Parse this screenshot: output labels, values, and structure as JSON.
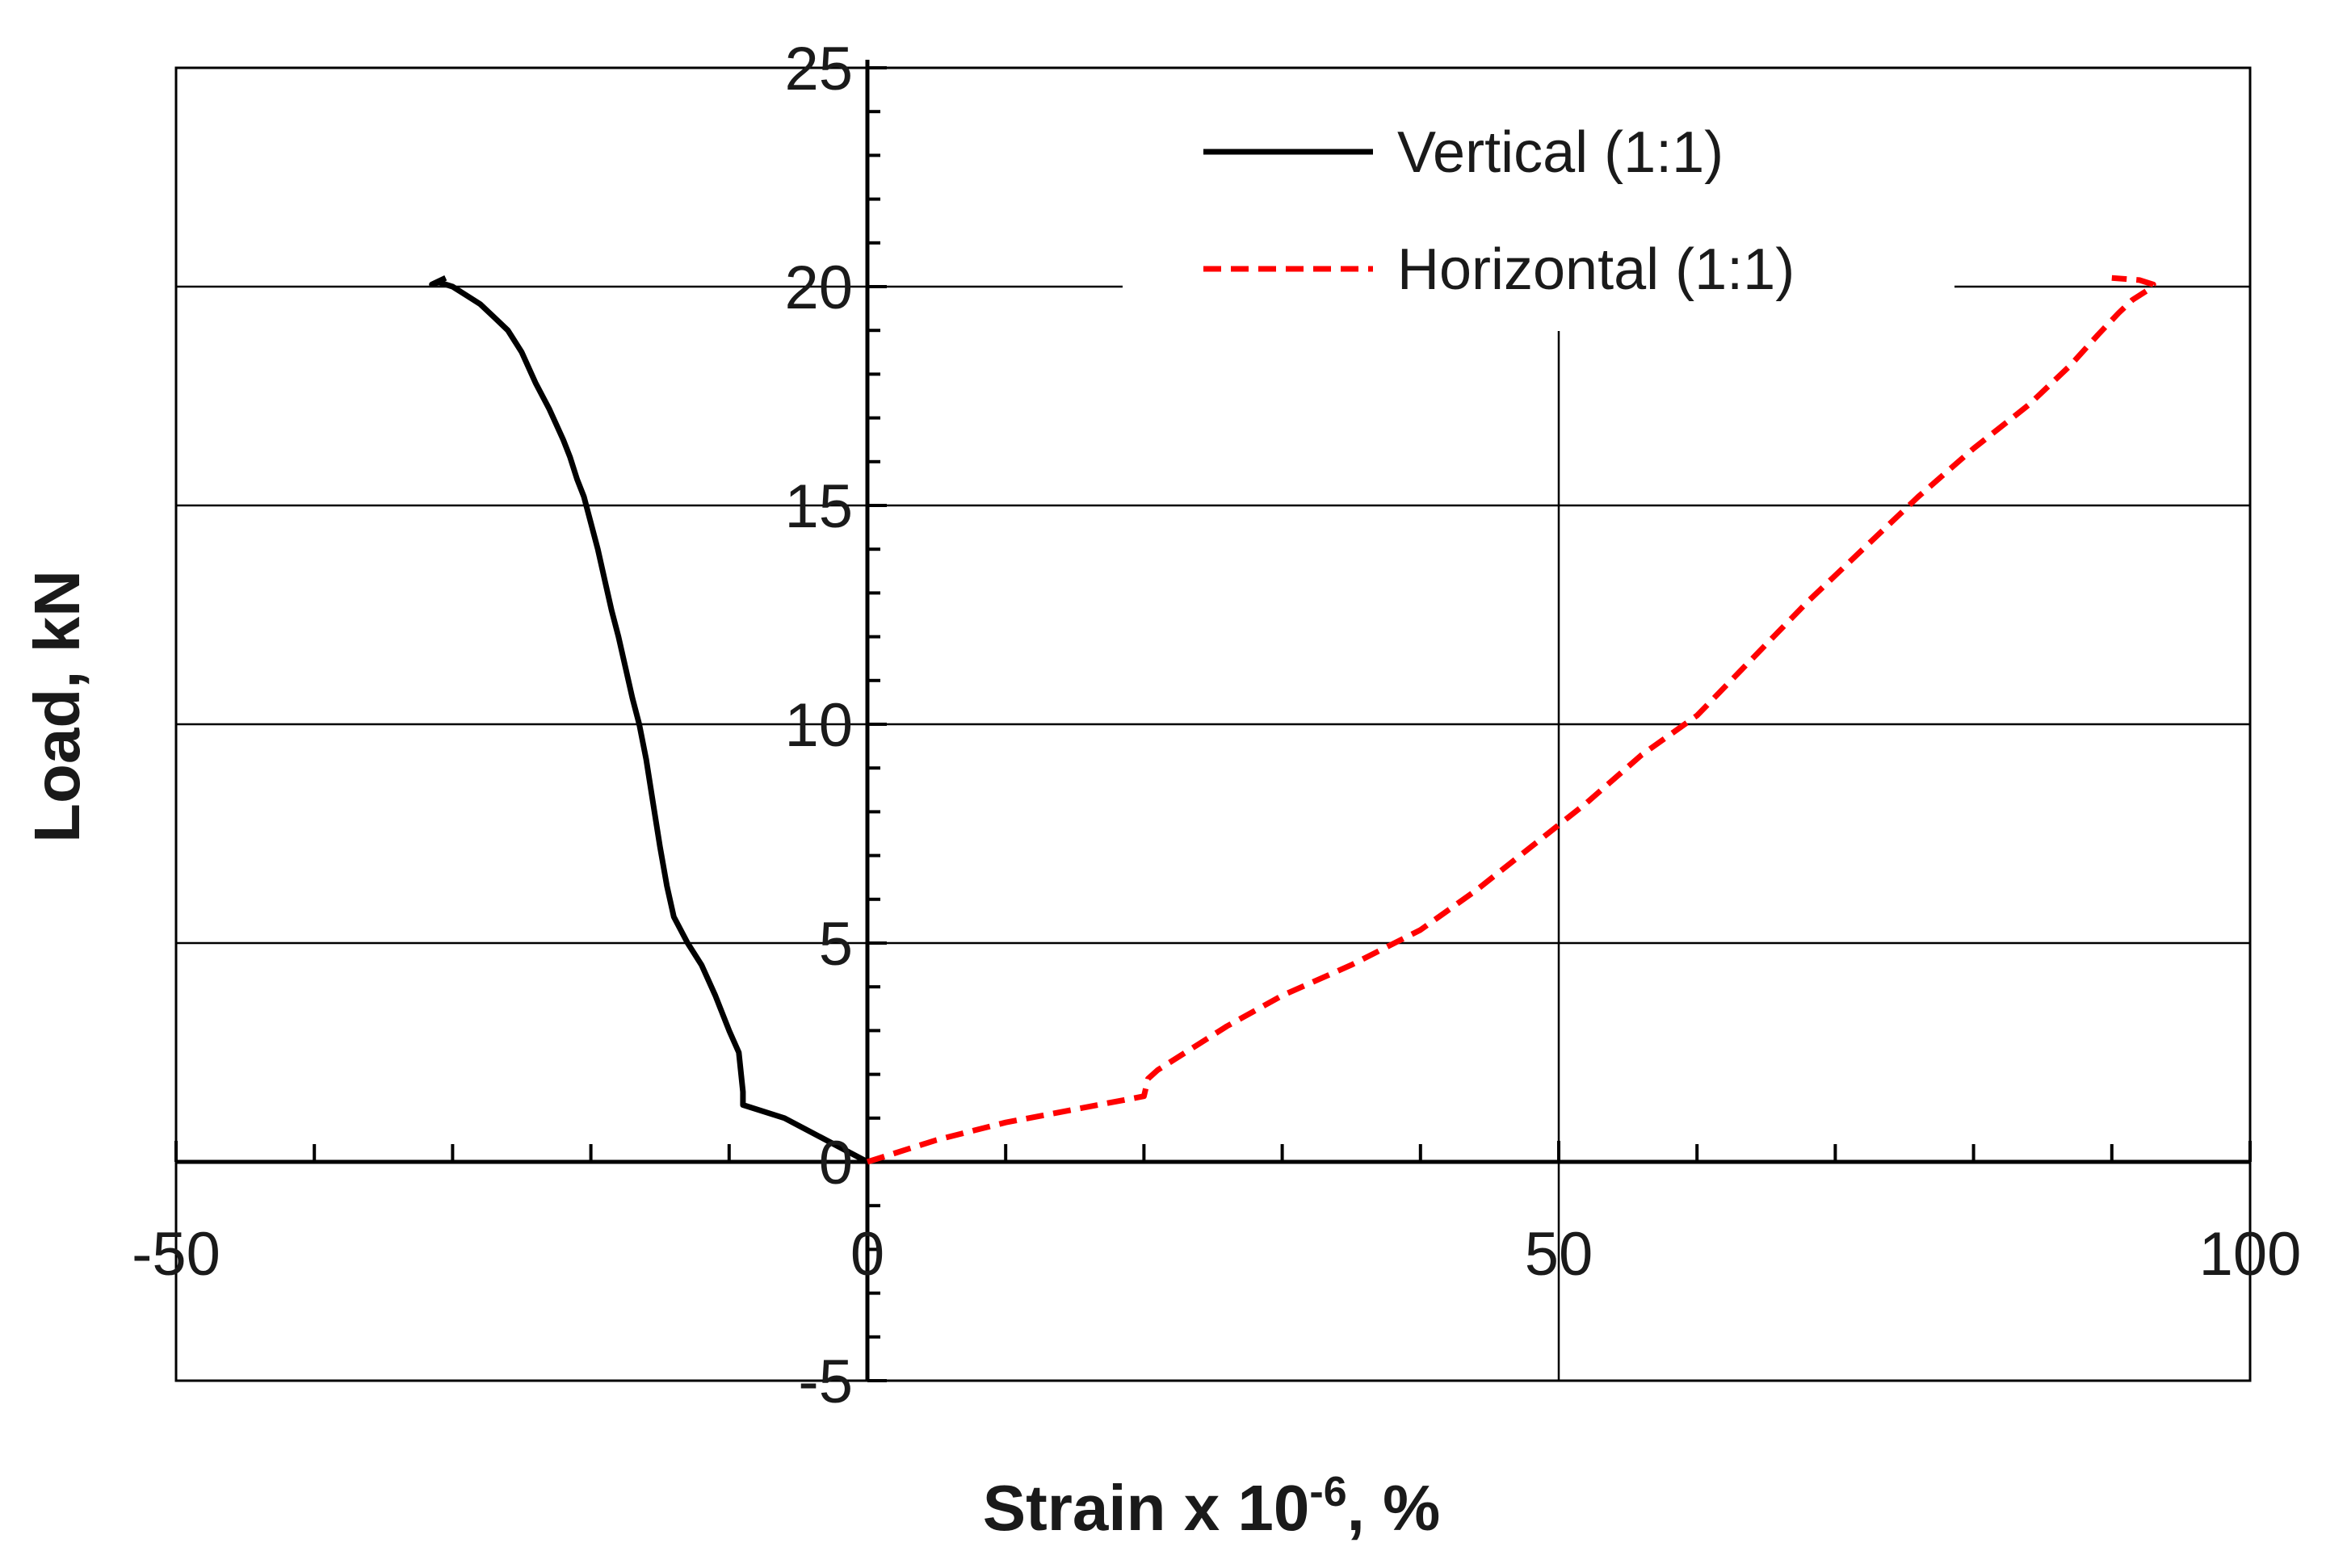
{
  "chart_data": {
    "type": "line",
    "title": "",
    "xlabel": "Strain x 10",
    "xlabel_sup": "-6",
    "xlabel_suffix": ", %",
    "ylabel": "Load, kN",
    "xlim": [
      -50,
      100
    ],
    "ylim": [
      -5,
      25
    ],
    "x_ticks": [
      -50,
      0,
      50,
      100
    ],
    "y_ticks": [
      -5,
      0,
      5,
      10,
      15,
      20,
      25
    ],
    "x_tick_labels": [
      "-50",
      "0",
      "50",
      "100"
    ],
    "y_tick_labels": [
      "-5",
      "0",
      "5",
      "10",
      "15",
      "20",
      "25"
    ],
    "grid": true,
    "legend_position": "top-right",
    "series": [
      {
        "name": "Vertical (1:1)",
        "color": "#000000",
        "style": "solid",
        "x": [
          0,
          -6,
          -9,
          -9,
          -9.3,
          -10,
          -11,
          -12,
          -13,
          -14,
          -14.5,
          -15,
          -15.5,
          -16,
          -16.5,
          -17,
          -17.5,
          -18,
          -18.5,
          -19,
          -19.5,
          -20,
          -20.5,
          -21,
          -21.5,
          -22,
          -23,
          -24,
          -25,
          -26,
          -27,
          -28,
          -29,
          -30,
          -31,
          -31.5,
          -30.5
        ],
        "y": [
          0,
          1.0,
          1.3,
          1.6,
          2.5,
          3.0,
          3.8,
          4.5,
          5.0,
          5.6,
          6.3,
          7.2,
          8.2,
          9.2,
          10.0,
          10.6,
          11.3,
          12.0,
          12.6,
          13.3,
          14.0,
          14.6,
          15.2,
          15.6,
          16.1,
          16.5,
          17.2,
          17.8,
          18.5,
          19.0,
          19.3,
          19.6,
          19.8,
          20.0,
          20.1,
          20.05,
          20.2
        ]
      },
      {
        "name": "Horizontal (1:1)",
        "color": "#ff0000",
        "style": "dashed",
        "x": [
          0,
          5,
          10,
          15,
          20,
          20.3,
          21,
          23,
          26,
          30,
          35,
          40,
          44,
          48,
          52,
          56,
          60,
          64,
          68,
          72,
          76,
          80,
          84,
          87,
          89,
          90.5,
          91.5,
          92.5,
          93,
          92,
          90
        ],
        "y": [
          0,
          0.5,
          0.9,
          1.2,
          1.5,
          1.9,
          2.1,
          2.5,
          3.1,
          3.8,
          4.5,
          5.3,
          6.2,
          7.2,
          8.2,
          9.3,
          10.2,
          11.5,
          12.8,
          14.0,
          15.2,
          16.3,
          17.3,
          18.2,
          18.9,
          19.4,
          19.7,
          19.9,
          20.05,
          20.15,
          20.2
        ]
      }
    ]
  }
}
